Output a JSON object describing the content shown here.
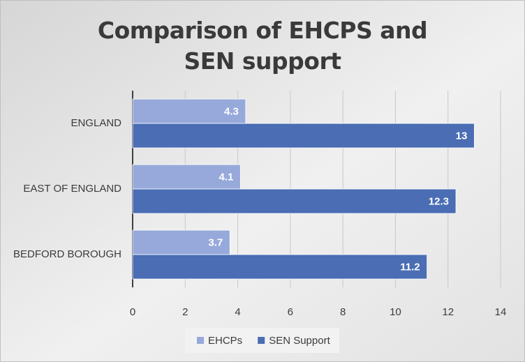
{
  "chart_data": {
    "type": "barh",
    "title": "Comparison of EHCPS and SEN support",
    "categories": [
      "ENGLAND",
      "EAST OF ENGLAND",
      "BEDFORD BOROUGH"
    ],
    "series": [
      {
        "name": "EHCPs",
        "color": "#97a9da",
        "values": [
          4.3,
          4.1,
          3.7
        ]
      },
      {
        "name": "SEN Support",
        "color": "#4a6db4",
        "values": [
          13,
          12.3,
          11.2
        ]
      }
    ],
    "xlim": [
      0,
      14
    ],
    "xticks": [
      0,
      2,
      4,
      6,
      8,
      10,
      12,
      14
    ],
    "grid": true,
    "legend": "bottom"
  }
}
